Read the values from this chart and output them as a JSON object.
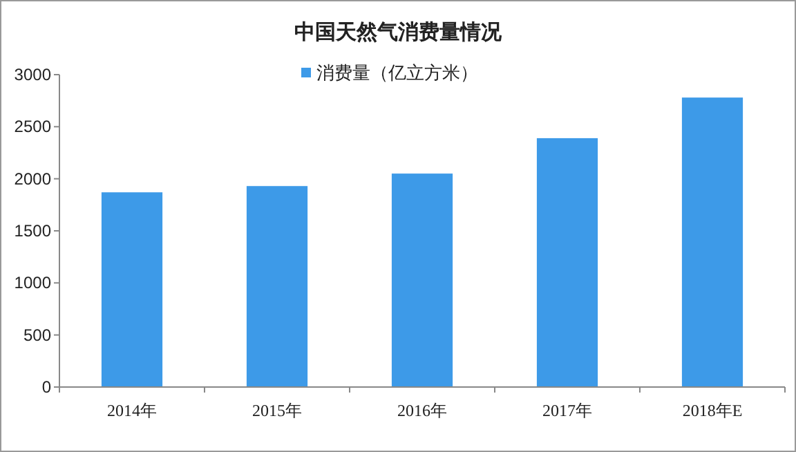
{
  "chart_data": {
    "type": "bar",
    "title": "中国天然气消费量情况",
    "categories": [
      "2014年",
      "2015年",
      "2016年",
      "2017年",
      "2018年E"
    ],
    "series": [
      {
        "name": "消费量（亿立方米）",
        "color": "#3d9ae8",
        "values": [
          1870,
          1930,
          2050,
          2390,
          2780
        ]
      }
    ],
    "ylim": [
      0,
      3000
    ],
    "yticks": [
      0,
      500,
      1000,
      1500,
      2000,
      2500,
      3000
    ],
    "grid": false,
    "legend": "top"
  }
}
